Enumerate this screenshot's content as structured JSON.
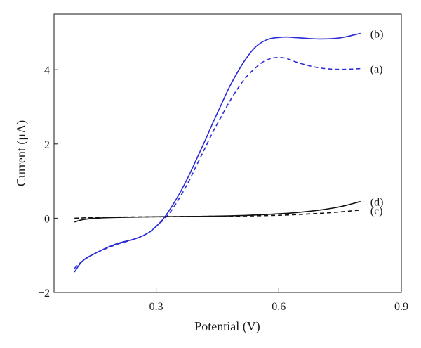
{
  "chart_data": {
    "type": "line",
    "xlabel": "Potential (V)",
    "ylabel": "Current (μA)",
    "xlim": [
      0.05,
      0.9
    ],
    "ylim": [
      -2,
      5.5
    ],
    "x_ticks": [
      0.3,
      0.6,
      0.9
    ],
    "x_tick_labels": [
      "0.3",
      "0.6",
      "0.9"
    ],
    "y_ticks": [
      -2,
      0,
      2,
      4
    ],
    "y_tick_labels": [
      "−2",
      "0",
      "2",
      "4"
    ],
    "grid": false,
    "legend": "none",
    "series": [
      {
        "name": "(a)",
        "color": "#2a2ad6",
        "dash": "dashed",
        "x": [
          0.1,
          0.12,
          0.15,
          0.2,
          0.25,
          0.28,
          0.3,
          0.32,
          0.34,
          0.36,
          0.38,
          0.4,
          0.42,
          0.44,
          0.46,
          0.48,
          0.5,
          0.52,
          0.54,
          0.56,
          0.58,
          0.6,
          0.62,
          0.65,
          0.7,
          0.75,
          0.8
        ],
        "y": [
          -1.35,
          -1.15,
          -0.95,
          -0.72,
          -0.55,
          -0.4,
          -0.22,
          -0.02,
          0.25,
          0.6,
          1.0,
          1.45,
          1.9,
          2.35,
          2.75,
          3.15,
          3.5,
          3.8,
          4.02,
          4.2,
          4.3,
          4.33,
          4.3,
          4.18,
          4.05,
          4.01,
          4.03
        ]
      },
      {
        "name": "(b)",
        "color": "#2a2ad6",
        "dash": "solid",
        "x": [
          0.1,
          0.12,
          0.15,
          0.2,
          0.25,
          0.28,
          0.3,
          0.32,
          0.34,
          0.36,
          0.38,
          0.4,
          0.42,
          0.44,
          0.46,
          0.48,
          0.5,
          0.52,
          0.54,
          0.56,
          0.58,
          0.6,
          0.62,
          0.65,
          0.7,
          0.75,
          0.8
        ],
        "y": [
          -1.45,
          -1.15,
          -0.95,
          -0.7,
          -0.55,
          -0.4,
          -0.22,
          0.02,
          0.35,
          0.72,
          1.15,
          1.62,
          2.1,
          2.6,
          3.08,
          3.55,
          3.95,
          4.3,
          4.58,
          4.75,
          4.84,
          4.87,
          4.88,
          4.86,
          4.83,
          4.86,
          4.98
        ]
      },
      {
        "name": "(c)",
        "color": "#111111",
        "dash": "dashed",
        "x": [
          0.1,
          0.15,
          0.2,
          0.3,
          0.4,
          0.5,
          0.6,
          0.7,
          0.75,
          0.8
        ],
        "y": [
          0.0,
          0.02,
          0.03,
          0.04,
          0.05,
          0.06,
          0.08,
          0.13,
          0.17,
          0.22
        ]
      },
      {
        "name": "(d)",
        "color": "#111111",
        "dash": "solid",
        "x": [
          0.1,
          0.12,
          0.15,
          0.2,
          0.3,
          0.4,
          0.5,
          0.6,
          0.65,
          0.7,
          0.75,
          0.8
        ],
        "y": [
          -0.1,
          -0.04,
          0.0,
          0.02,
          0.04,
          0.05,
          0.07,
          0.12,
          0.16,
          0.22,
          0.31,
          0.45
        ]
      }
    ]
  }
}
